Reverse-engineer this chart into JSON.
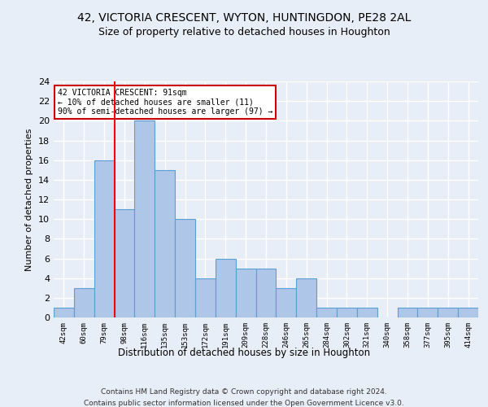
{
  "title": "42, VICTORIA CRESCENT, WYTON, HUNTINGDON, PE28 2AL",
  "subtitle": "Size of property relative to detached houses in Houghton",
  "xlabel_bottom": "Distribution of detached houses by size in Houghton",
  "ylabel": "Number of detached properties",
  "bin_labels": [
    "42sqm",
    "60sqm",
    "79sqm",
    "98sqm",
    "116sqm",
    "135sqm",
    "153sqm",
    "172sqm",
    "191sqm",
    "209sqm",
    "228sqm",
    "246sqm",
    "265sqm",
    "284sqm",
    "302sqm",
    "321sqm",
    "340sqm",
    "358sqm",
    "377sqm",
    "395sqm",
    "414sqm"
  ],
  "bar_values": [
    1,
    3,
    16,
    11,
    20,
    15,
    10,
    4,
    6,
    5,
    5,
    3,
    4,
    1,
    1,
    1,
    0,
    1,
    1,
    1,
    1
  ],
  "bar_color": "#aec6e8",
  "bar_edge_color": "#5a9fd4",
  "ylim": [
    0,
    24
  ],
  "yticks": [
    0,
    2,
    4,
    6,
    8,
    10,
    12,
    14,
    16,
    18,
    20,
    22,
    24
  ],
  "red_line_x": 2.5,
  "annotation_text": "42 VICTORIA CRESCENT: 91sqm\n← 10% of detached houses are smaller (11)\n90% of semi-detached houses are larger (97) →",
  "annotation_box_color": "#ffffff",
  "annotation_box_edge_color": "#cc0000",
  "footer1": "Contains HM Land Registry data © Crown copyright and database right 2024.",
  "footer2": "Contains public sector information licensed under the Open Government Licence v3.0.",
  "background_color": "#e8eef7",
  "grid_color": "#ffffff",
  "title_fontsize": 10,
  "subtitle_fontsize": 9
}
